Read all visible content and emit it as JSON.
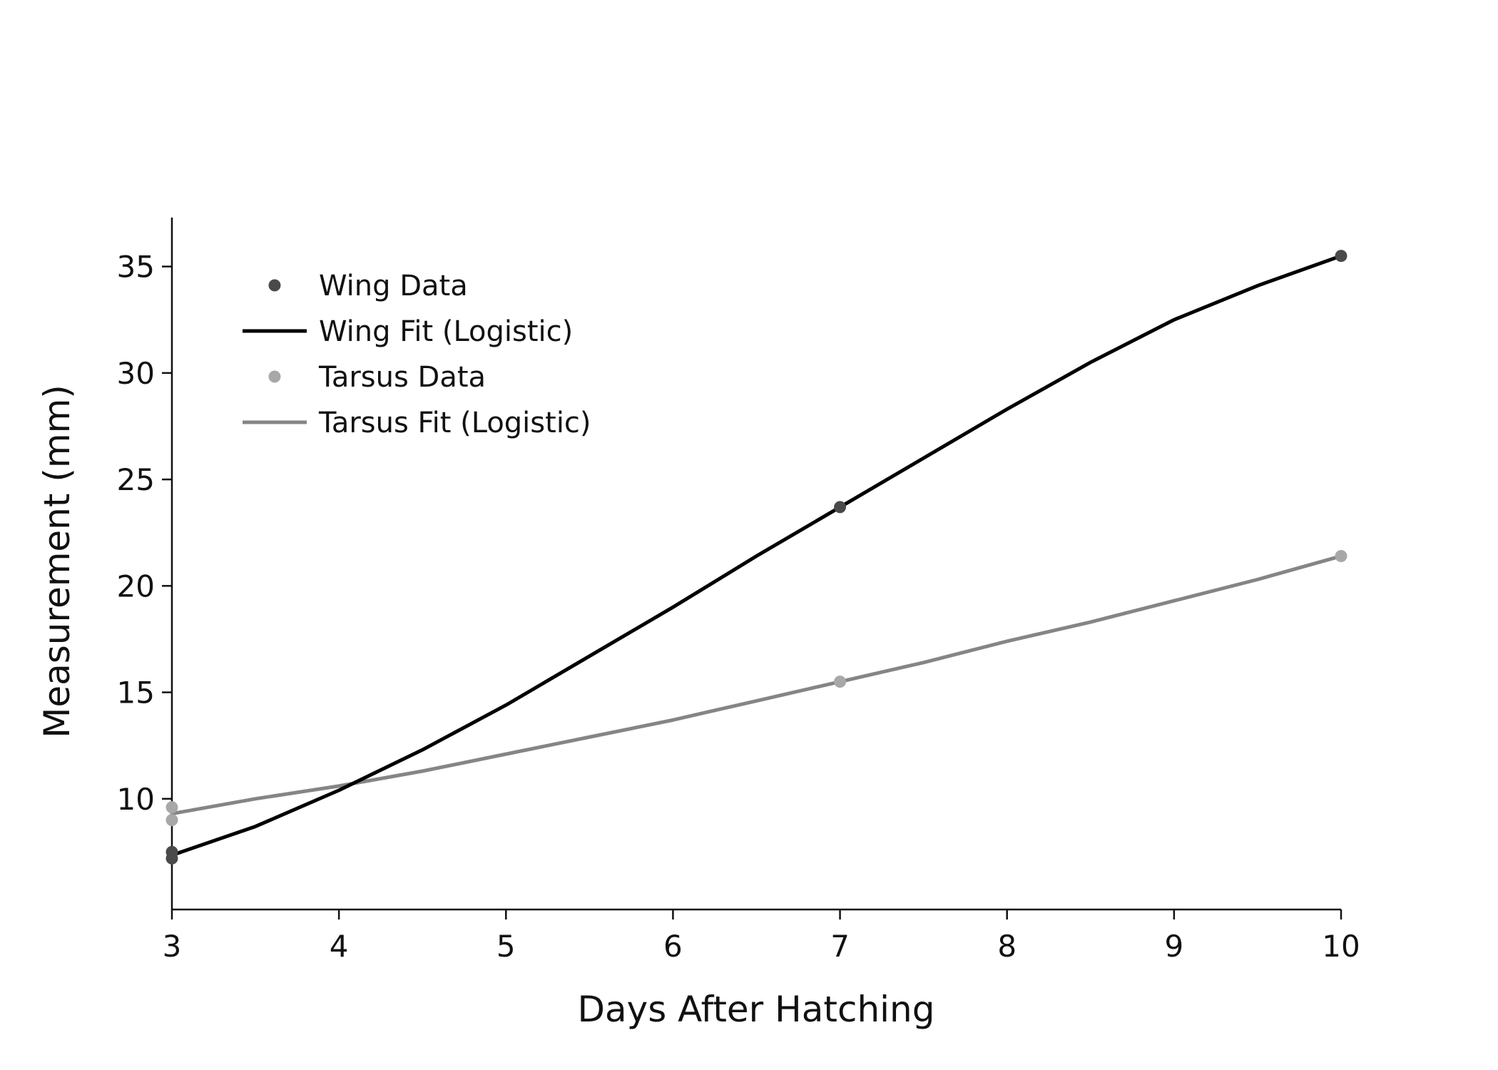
{
  "chart_data": {
    "type": "line",
    "title": "",
    "xlabel": "Days After Hatching",
    "ylabel": "Measurement (mm)",
    "xlim": [
      3,
      10
    ],
    "ylim": [
      4.8,
      37.3
    ],
    "xticks": [
      3,
      4,
      5,
      6,
      7,
      8,
      9,
      10
    ],
    "yticks": [
      10,
      15,
      20,
      25,
      30,
      35
    ],
    "grid": false,
    "legend_position": "top-left",
    "series": [
      {
        "name": "Wing Data",
        "kind": "points",
        "color": "#4a4a4a",
        "x": [
          3,
          3,
          7,
          10
        ],
        "y": [
          7.2,
          7.5,
          23.7,
          35.5
        ]
      },
      {
        "name": "Wing Fit (Logistic)",
        "kind": "line",
        "color": "#000000",
        "x": [
          3,
          3.5,
          4,
          4.5,
          5,
          5.5,
          6,
          6.5,
          7,
          7.5,
          8,
          8.5,
          9,
          9.5,
          10
        ],
        "y": [
          7.35,
          8.7,
          10.4,
          12.3,
          14.4,
          16.7,
          19.0,
          21.4,
          23.7,
          26.0,
          28.3,
          30.5,
          32.5,
          34.1,
          35.5
        ]
      },
      {
        "name": "Tarsus Data",
        "kind": "points",
        "color": "#a8a8a8",
        "x": [
          3,
          3,
          7,
          10
        ],
        "y": [
          9.0,
          9.6,
          15.5,
          21.4
        ]
      },
      {
        "name": "Tarsus Fit (Logistic)",
        "kind": "line",
        "color": "#858585",
        "x": [
          3,
          3.5,
          4,
          4.5,
          5,
          5.5,
          6,
          6.5,
          7,
          7.5,
          8,
          8.5,
          9,
          9.5,
          10
        ],
        "y": [
          9.3,
          10.0,
          10.6,
          11.3,
          12.1,
          12.9,
          13.7,
          14.6,
          15.5,
          16.4,
          17.4,
          18.3,
          19.3,
          20.3,
          21.4
        ]
      }
    ]
  }
}
